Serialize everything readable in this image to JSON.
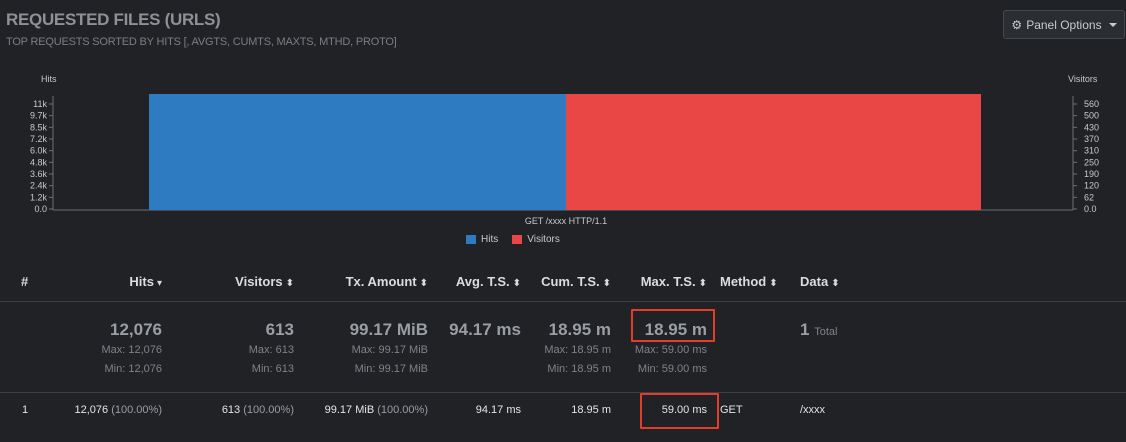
{
  "panel": {
    "title": "REQUESTED FILES (URLS)",
    "subtitle": "TOP REQUESTS SORTED BY HITS [, AVGTS, CUMTS, MAXTS, MTHD, PROTO]",
    "options_label": "Panel Options"
  },
  "chart_data": {
    "type": "bar",
    "categories": [
      "GET /xxxx HTTP/1.1"
    ],
    "series": [
      {
        "name": "Hits",
        "values": [
          12076
        ],
        "color": "#2f7bc1",
        "axis": "left"
      },
      {
        "name": "Visitors",
        "values": [
          613
        ],
        "color": "#e84746",
        "axis": "right"
      }
    ],
    "ylabel_left": "Hits",
    "ylabel_right": "Visitors",
    "yticks_left": [
      "11k",
      "9.7k",
      "8.5k",
      "7.2k",
      "6.0k",
      "4.8k",
      "3.6k",
      "2.4k",
      "1.2k",
      "0.0"
    ],
    "yticks_right": [
      "560",
      "500",
      "430",
      "370",
      "310",
      "250",
      "190",
      "120",
      "62",
      "0.0"
    ],
    "ylim_left": [
      0,
      12076
    ],
    "ylim_right": [
      0,
      613
    ],
    "legend_position": "bottom"
  },
  "table": {
    "headers": {
      "index": "#",
      "hits": "Hits",
      "visitors": "Visitors",
      "tx": "Tx. Amount",
      "avg": "Avg. T.S.",
      "cum": "Cum. T.S.",
      "max": "Max. T.S.",
      "method": "Method",
      "data": "Data"
    },
    "icons": {
      "sort_desc": "▾",
      "sort_both": "⬍"
    },
    "summary": {
      "hits": {
        "total": "12,076",
        "max": "Max: 12,076",
        "min": "Min: 12,076"
      },
      "visitors": {
        "total": "613",
        "max": "Max: 613",
        "min": "Min: 613"
      },
      "tx": {
        "total": "99.17 MiB",
        "max": "Max: 99.17 MiB",
        "min": "Min: 99.17 MiB"
      },
      "avg": {
        "total": "94.17 ms"
      },
      "cum": {
        "total": "18.95 m",
        "max": "Max: 18.95 m",
        "min": "Min: 18.95 m"
      },
      "max": {
        "total": "18.95 m",
        "max": "Max: 59.00 ms",
        "min": "Min: 59.00 ms"
      },
      "data": {
        "total": "1",
        "label": "Total"
      }
    },
    "rows": [
      {
        "index": "1",
        "hits": "12,076",
        "hits_pct": "(100.00%)",
        "visitors": "613",
        "visitors_pct": "(100.00%)",
        "tx": "99.17 MiB",
        "tx_pct": "(100.00%)",
        "avg": "94.17 ms",
        "cum": "18.95 m",
        "max": "59.00 ms",
        "method": "GET",
        "data": "/xxxx"
      }
    ]
  },
  "colors": {
    "accent_highlight": "#e23d2a",
    "background": "#202226"
  }
}
